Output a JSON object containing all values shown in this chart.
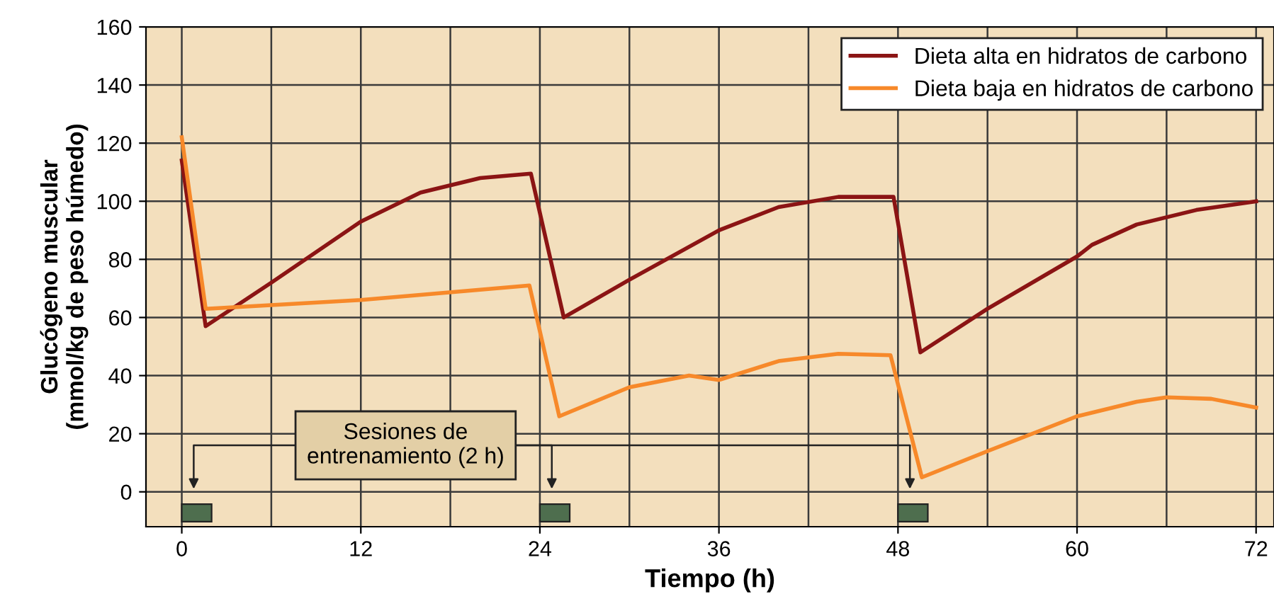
{
  "chart_data": {
    "type": "line",
    "xlabel": "Tiempo (h)",
    "ylabel": "Glucógeno muscular\n(mmol/kg de peso húmedo)",
    "xlim": [
      -2.4,
      73.2
    ],
    "ylim": [
      -12,
      160
    ],
    "xticks": [
      0,
      12,
      24,
      36,
      48,
      60,
      72
    ],
    "yticks": [
      0,
      20,
      40,
      60,
      80,
      100,
      120,
      140,
      160
    ],
    "grid": true,
    "legend": "top right",
    "marker": "none",
    "line_style": "solid",
    "series": [
      {
        "name": "Dieta alta en hidratos de carbono",
        "color": "#8b1414",
        "x": [
          0,
          1.6,
          6,
          12,
          16,
          20,
          23.4,
          25.6,
          30,
          36,
          40,
          44,
          47.7,
          49.5,
          54,
          60,
          61,
          64,
          68,
          72
        ],
        "values": [
          114,
          57,
          72,
          93,
          103,
          108,
          109.5,
          60,
          73,
          90,
          98,
          101.5,
          101.5,
          48,
          63,
          81,
          85,
          92,
          97,
          100
        ]
      },
      {
        "name": "Dieta baja en hidratos de carbono",
        "color": "#f7892a",
        "x": [
          0,
          1.6,
          12,
          23.3,
          25.3,
          30,
          34,
          36,
          40,
          44,
          47.5,
          49.6,
          54,
          60,
          64,
          66,
          69,
          72
        ],
        "values": [
          122,
          63,
          66,
          71,
          26,
          36,
          40,
          38.5,
          45,
          47.5,
          47,
          5,
          14,
          26,
          31,
          32.5,
          32,
          29
        ]
      }
    ],
    "annotations": [
      "Sesiones de\nentrenamiento (2 h)"
    ]
  }
}
